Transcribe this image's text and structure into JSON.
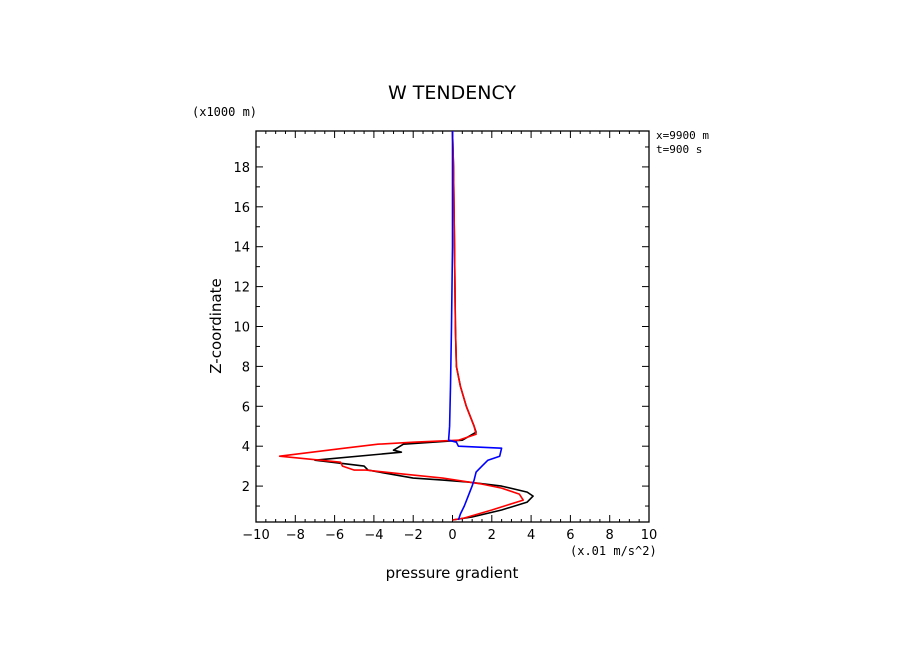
{
  "chart_data": {
    "type": "line",
    "title": "W TENDENCY",
    "xlabel": "pressure gradient",
    "ylabel": "Z-coordinate",
    "x_unit": "(x.01 m/s^2)",
    "y_unit": "(x1000 m)",
    "xlim": [
      -10,
      10
    ],
    "ylim": [
      0.2,
      19.8
    ],
    "x_ticks": [
      -10,
      -8,
      -6,
      -4,
      -2,
      0,
      2,
      4,
      6,
      8,
      10
    ],
    "y_ticks": [
      2,
      4,
      6,
      8,
      10,
      12,
      14,
      16,
      18
    ],
    "annotations": [
      "x=9900 m",
      "t=900 s"
    ],
    "grid": false,
    "series": [
      {
        "color": "#000000",
        "points": [
          [
            0.0,
            19.8
          ],
          [
            0.05,
            18.0
          ],
          [
            0.1,
            14.0
          ],
          [
            0.15,
            10.0
          ],
          [
            0.2,
            8.0
          ],
          [
            0.4,
            7.0
          ],
          [
            0.7,
            6.0
          ],
          [
            1.1,
            5.0
          ],
          [
            1.2,
            4.7
          ],
          [
            0.5,
            4.3
          ],
          [
            -2.5,
            4.1
          ],
          [
            -3.0,
            3.8
          ],
          [
            -2.6,
            3.7
          ],
          [
            -7.0,
            3.3
          ],
          [
            -4.5,
            3.0
          ],
          [
            -4.3,
            2.8
          ],
          [
            -2.0,
            2.4
          ],
          [
            -0.5,
            2.3
          ],
          [
            0.8,
            2.2
          ],
          [
            2.5,
            2.0
          ],
          [
            3.8,
            1.7
          ],
          [
            4.1,
            1.5
          ],
          [
            3.8,
            1.2
          ],
          [
            2.5,
            0.8
          ],
          [
            1.0,
            0.45
          ],
          [
            0.0,
            0.3
          ]
        ]
      },
      {
        "color": "#ff0000",
        "points": [
          [
            0.0,
            19.8
          ],
          [
            0.05,
            18.0
          ],
          [
            0.1,
            14.0
          ],
          [
            0.15,
            10.0
          ],
          [
            0.2,
            8.0
          ],
          [
            0.4,
            7.0
          ],
          [
            0.7,
            6.0
          ],
          [
            1.1,
            5.0
          ],
          [
            1.2,
            4.6
          ],
          [
            0.3,
            4.3
          ],
          [
            -2.0,
            4.2
          ],
          [
            -3.8,
            4.1
          ],
          [
            -5.5,
            3.9
          ],
          [
            -8.8,
            3.5
          ],
          [
            -5.7,
            3.2
          ],
          [
            -5.6,
            3.0
          ],
          [
            -5.0,
            2.8
          ],
          [
            -4.4,
            2.8
          ],
          [
            -2.5,
            2.6
          ],
          [
            -0.5,
            2.4
          ],
          [
            1.5,
            2.1
          ],
          [
            2.5,
            1.9
          ],
          [
            3.4,
            1.6
          ],
          [
            3.6,
            1.3
          ],
          [
            2.0,
            0.8
          ],
          [
            0.6,
            0.4
          ],
          [
            0.0,
            0.3
          ]
        ]
      },
      {
        "color": "#0000ff",
        "points": [
          [
            0.0,
            19.8
          ],
          [
            0.0,
            18.0
          ],
          [
            0.0,
            14.0
          ],
          [
            -0.05,
            10.0
          ],
          [
            -0.1,
            7.0
          ],
          [
            -0.15,
            5.0
          ],
          [
            -0.2,
            4.3
          ],
          [
            0.2,
            4.2
          ],
          [
            0.3,
            4.0
          ],
          [
            2.5,
            3.9
          ],
          [
            2.4,
            3.5
          ],
          [
            1.8,
            3.3
          ],
          [
            1.5,
            3.0
          ],
          [
            1.2,
            2.7
          ],
          [
            1.1,
            2.3
          ],
          [
            1.0,
            2.0
          ],
          [
            0.8,
            1.5
          ],
          [
            0.6,
            1.0
          ],
          [
            0.4,
            0.6
          ],
          [
            0.3,
            0.3
          ]
        ]
      }
    ]
  }
}
